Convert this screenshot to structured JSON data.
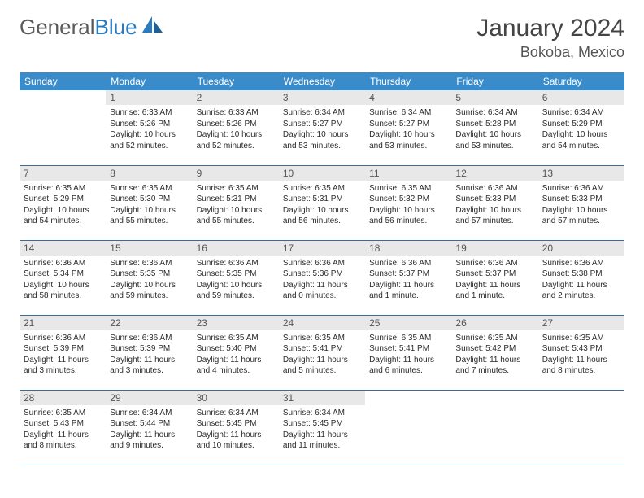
{
  "brand": {
    "part1": "General",
    "part2": "Blue"
  },
  "title": "January 2024",
  "location": "Bokoba, Mexico",
  "colors": {
    "header_bg": "#3a8bc9",
    "header_text": "#ffffff",
    "daynum_bg": "#e8e8e8",
    "daynum_text": "#555555",
    "cell_border": "#3a6a9a",
    "body_text": "#2b2b2b",
    "title_text": "#444444",
    "logo_gray": "#5a5a5a",
    "logo_blue": "#2a7ac0"
  },
  "weekdays": [
    "Sunday",
    "Monday",
    "Tuesday",
    "Wednesday",
    "Thursday",
    "Friday",
    "Saturday"
  ],
  "weeks": [
    [
      {
        "n": "",
        "sr": "",
        "ss": "",
        "dl": ""
      },
      {
        "n": "1",
        "sr": "Sunrise: 6:33 AM",
        "ss": "Sunset: 5:26 PM",
        "dl": "Daylight: 10 hours and 52 minutes."
      },
      {
        "n": "2",
        "sr": "Sunrise: 6:33 AM",
        "ss": "Sunset: 5:26 PM",
        "dl": "Daylight: 10 hours and 52 minutes."
      },
      {
        "n": "3",
        "sr": "Sunrise: 6:34 AM",
        "ss": "Sunset: 5:27 PM",
        "dl": "Daylight: 10 hours and 53 minutes."
      },
      {
        "n": "4",
        "sr": "Sunrise: 6:34 AM",
        "ss": "Sunset: 5:27 PM",
        "dl": "Daylight: 10 hours and 53 minutes."
      },
      {
        "n": "5",
        "sr": "Sunrise: 6:34 AM",
        "ss": "Sunset: 5:28 PM",
        "dl": "Daylight: 10 hours and 53 minutes."
      },
      {
        "n": "6",
        "sr": "Sunrise: 6:34 AM",
        "ss": "Sunset: 5:29 PM",
        "dl": "Daylight: 10 hours and 54 minutes."
      }
    ],
    [
      {
        "n": "7",
        "sr": "Sunrise: 6:35 AM",
        "ss": "Sunset: 5:29 PM",
        "dl": "Daylight: 10 hours and 54 minutes."
      },
      {
        "n": "8",
        "sr": "Sunrise: 6:35 AM",
        "ss": "Sunset: 5:30 PM",
        "dl": "Daylight: 10 hours and 55 minutes."
      },
      {
        "n": "9",
        "sr": "Sunrise: 6:35 AM",
        "ss": "Sunset: 5:31 PM",
        "dl": "Daylight: 10 hours and 55 minutes."
      },
      {
        "n": "10",
        "sr": "Sunrise: 6:35 AM",
        "ss": "Sunset: 5:31 PM",
        "dl": "Daylight: 10 hours and 56 minutes."
      },
      {
        "n": "11",
        "sr": "Sunrise: 6:35 AM",
        "ss": "Sunset: 5:32 PM",
        "dl": "Daylight: 10 hours and 56 minutes."
      },
      {
        "n": "12",
        "sr": "Sunrise: 6:36 AM",
        "ss": "Sunset: 5:33 PM",
        "dl": "Daylight: 10 hours and 57 minutes."
      },
      {
        "n": "13",
        "sr": "Sunrise: 6:36 AM",
        "ss": "Sunset: 5:33 PM",
        "dl": "Daylight: 10 hours and 57 minutes."
      }
    ],
    [
      {
        "n": "14",
        "sr": "Sunrise: 6:36 AM",
        "ss": "Sunset: 5:34 PM",
        "dl": "Daylight: 10 hours and 58 minutes."
      },
      {
        "n": "15",
        "sr": "Sunrise: 6:36 AM",
        "ss": "Sunset: 5:35 PM",
        "dl": "Daylight: 10 hours and 59 minutes."
      },
      {
        "n": "16",
        "sr": "Sunrise: 6:36 AM",
        "ss": "Sunset: 5:35 PM",
        "dl": "Daylight: 10 hours and 59 minutes."
      },
      {
        "n": "17",
        "sr": "Sunrise: 6:36 AM",
        "ss": "Sunset: 5:36 PM",
        "dl": "Daylight: 11 hours and 0 minutes."
      },
      {
        "n": "18",
        "sr": "Sunrise: 6:36 AM",
        "ss": "Sunset: 5:37 PM",
        "dl": "Daylight: 11 hours and 1 minute."
      },
      {
        "n": "19",
        "sr": "Sunrise: 6:36 AM",
        "ss": "Sunset: 5:37 PM",
        "dl": "Daylight: 11 hours and 1 minute."
      },
      {
        "n": "20",
        "sr": "Sunrise: 6:36 AM",
        "ss": "Sunset: 5:38 PM",
        "dl": "Daylight: 11 hours and 2 minutes."
      }
    ],
    [
      {
        "n": "21",
        "sr": "Sunrise: 6:36 AM",
        "ss": "Sunset: 5:39 PM",
        "dl": "Daylight: 11 hours and 3 minutes."
      },
      {
        "n": "22",
        "sr": "Sunrise: 6:36 AM",
        "ss": "Sunset: 5:39 PM",
        "dl": "Daylight: 11 hours and 3 minutes."
      },
      {
        "n": "23",
        "sr": "Sunrise: 6:35 AM",
        "ss": "Sunset: 5:40 PM",
        "dl": "Daylight: 11 hours and 4 minutes."
      },
      {
        "n": "24",
        "sr": "Sunrise: 6:35 AM",
        "ss": "Sunset: 5:41 PM",
        "dl": "Daylight: 11 hours and 5 minutes."
      },
      {
        "n": "25",
        "sr": "Sunrise: 6:35 AM",
        "ss": "Sunset: 5:41 PM",
        "dl": "Daylight: 11 hours and 6 minutes."
      },
      {
        "n": "26",
        "sr": "Sunrise: 6:35 AM",
        "ss": "Sunset: 5:42 PM",
        "dl": "Daylight: 11 hours and 7 minutes."
      },
      {
        "n": "27",
        "sr": "Sunrise: 6:35 AM",
        "ss": "Sunset: 5:43 PM",
        "dl": "Daylight: 11 hours and 8 minutes."
      }
    ],
    [
      {
        "n": "28",
        "sr": "Sunrise: 6:35 AM",
        "ss": "Sunset: 5:43 PM",
        "dl": "Daylight: 11 hours and 8 minutes."
      },
      {
        "n": "29",
        "sr": "Sunrise: 6:34 AM",
        "ss": "Sunset: 5:44 PM",
        "dl": "Daylight: 11 hours and 9 minutes."
      },
      {
        "n": "30",
        "sr": "Sunrise: 6:34 AM",
        "ss": "Sunset: 5:45 PM",
        "dl": "Daylight: 11 hours and 10 minutes."
      },
      {
        "n": "31",
        "sr": "Sunrise: 6:34 AM",
        "ss": "Sunset: 5:45 PM",
        "dl": "Daylight: 11 hours and 11 minutes."
      },
      {
        "n": "",
        "sr": "",
        "ss": "",
        "dl": ""
      },
      {
        "n": "",
        "sr": "",
        "ss": "",
        "dl": ""
      },
      {
        "n": "",
        "sr": "",
        "ss": "",
        "dl": ""
      }
    ]
  ]
}
